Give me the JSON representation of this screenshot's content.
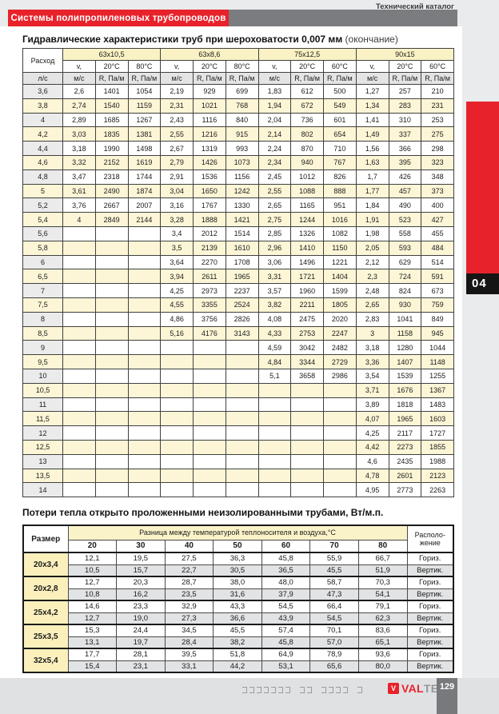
{
  "header": {
    "catalog_label": "Технический каталог",
    "banner_title": "Системы полипропиленовых трубопроводов"
  },
  "side_tab": {
    "section_number": "04"
  },
  "footer": {
    "glyphs": "⊐⊐⊐⊐⊐⊐⊐ ⊐⊐ ⊐⊐⊐⊐ ⊐",
    "brand_icon": "V",
    "brand_val": "VAL",
    "brand_tec": "TEC",
    "page_number": "129"
  },
  "colors": {
    "accent_red": "#e8222b",
    "banner_gray": "#7b7c7f",
    "header_yellow": "#faf2c4",
    "row_yellow": "#fcf6d6",
    "units_gray": "#e4e4e4"
  },
  "hydraulics_table": {
    "title": "Гидравлические характеристики труб при шероховатости 0,007 мм",
    "title_suffix": " (окончание)",
    "flow_header": "Расход",
    "flow_unit": "л/с",
    "velocity_header": "v,",
    "velocity_unit": "м/с",
    "resistance_unit": "R, Па/м",
    "groups": [
      {
        "size": "63x10,5",
        "temp1": "20°С",
        "temp2": "80°С"
      },
      {
        "size": "63x8,6",
        "temp1": "20°С",
        "temp2": "80°С"
      },
      {
        "size": "75x12,5",
        "temp1": "20°С",
        "temp2": "60°С"
      },
      {
        "size": "90x15",
        "temp1": "20°С",
        "temp2": "60°С"
      }
    ],
    "rows": [
      [
        "3,6",
        "2,6",
        "1401",
        "1054",
        "2,19",
        "929",
        "699",
        "1,83",
        "612",
        "500",
        "1,27",
        "257",
        "210"
      ],
      [
        "3,8",
        "2,74",
        "1540",
        "1159",
        "2,31",
        "1021",
        "768",
        "1,94",
        "672",
        "549",
        "1,34",
        "283",
        "231"
      ],
      [
        "4",
        "2,89",
        "1685",
        "1267",
        "2,43",
        "1116",
        "840",
        "2,04",
        "736",
        "601",
        "1,41",
        "310",
        "253"
      ],
      [
        "4,2",
        "3,03",
        "1835",
        "1381",
        "2,55",
        "1216",
        "915",
        "2,14",
        "802",
        "654",
        "1,49",
        "337",
        "275"
      ],
      [
        "4,4",
        "3,18",
        "1990",
        "1498",
        "2,67",
        "1319",
        "993",
        "2,24",
        "870",
        "710",
        "1,56",
        "366",
        "298"
      ],
      [
        "4,6",
        "3,32",
        "2152",
        "1619",
        "2,79",
        "1426",
        "1073",
        "2,34",
        "940",
        "767",
        "1,63",
        "395",
        "323"
      ],
      [
        "4,8",
        "3,47",
        "2318",
        "1744",
        "2,91",
        "1536",
        "1156",
        "2,45",
        "1012",
        "826",
        "1,7",
        "426",
        "348"
      ],
      [
        "5",
        "3,61",
        "2490",
        "1874",
        "3,04",
        "1650",
        "1242",
        "2,55",
        "1088",
        "888",
        "1,77",
        "457",
        "373"
      ],
      [
        "5,2",
        "3,76",
        "2667",
        "2007",
        "3,16",
        "1767",
        "1330",
        "2,65",
        "1165",
        "951",
        "1,84",
        "490",
        "400"
      ],
      [
        "5,4",
        "4",
        "2849",
        "2144",
        "3,28",
        "1888",
        "1421",
        "2,75",
        "1244",
        "1016",
        "1,91",
        "523",
        "427"
      ],
      [
        "5,6",
        "",
        "",
        "",
        "3,4",
        "2012",
        "1514",
        "2,85",
        "1326",
        "1082",
        "1,98",
        "558",
        "455"
      ],
      [
        "5,8",
        "",
        "",
        "",
        "3,5",
        "2139",
        "1610",
        "2,96",
        "1410",
        "1150",
        "2,05",
        "593",
        "484"
      ],
      [
        "6",
        "",
        "",
        "",
        "3,64",
        "2270",
        "1708",
        "3,06",
        "1496",
        "1221",
        "2,12",
        "629",
        "514"
      ],
      [
        "6,5",
        "",
        "",
        "",
        "3,94",
        "2611",
        "1965",
        "3,31",
        "1721",
        "1404",
        "2,3",
        "724",
        "591"
      ],
      [
        "7",
        "",
        "",
        "",
        "4,25",
        "2973",
        "2237",
        "3,57",
        "1960",
        "1599",
        "2,48",
        "824",
        "673"
      ],
      [
        "7,5",
        "",
        "",
        "",
        "4,55",
        "3355",
        "2524",
        "3,82",
        "2211",
        "1805",
        "2,65",
        "930",
        "759"
      ],
      [
        "8",
        "",
        "",
        "",
        "4,86",
        "3756",
        "2826",
        "4,08",
        "2475",
        "2020",
        "2,83",
        "1041",
        "849"
      ],
      [
        "8,5",
        "",
        "",
        "",
        "5,16",
        "4176",
        "3143",
        "4,33",
        "2753",
        "2247",
        "3",
        "1158",
        "945"
      ],
      [
        "9",
        "",
        "",
        "",
        "",
        "",
        "",
        "4,59",
        "3042",
        "2482",
        "3,18",
        "1280",
        "1044"
      ],
      [
        "9,5",
        "",
        "",
        "",
        "",
        "",
        "",
        "4,84",
        "3344",
        "2729",
        "3,36",
        "1407",
        "1148"
      ],
      [
        "10",
        "",
        "",
        "",
        "",
        "",
        "",
        "5,1",
        "3658",
        "2986",
        "3,54",
        "1539",
        "1255"
      ],
      [
        "10,5",
        "",
        "",
        "",
        "",
        "",
        "",
        "",
        "",
        "",
        "3,71",
        "1676",
        "1367"
      ],
      [
        "11",
        "",
        "",
        "",
        "",
        "",
        "",
        "",
        "",
        "",
        "3,89",
        "1818",
        "1483"
      ],
      [
        "11,5",
        "",
        "",
        "",
        "",
        "",
        "",
        "",
        "",
        "",
        "4,07",
        "1965",
        "1603"
      ],
      [
        "12",
        "",
        "",
        "",
        "",
        "",
        "",
        "",
        "",
        "",
        "4,25",
        "2117",
        "1727"
      ],
      [
        "12,5",
        "",
        "",
        "",
        "",
        "",
        "",
        "",
        "",
        "",
        "4,42",
        "2273",
        "1855"
      ],
      [
        "13",
        "",
        "",
        "",
        "",
        "",
        "",
        "",
        "",
        "",
        "4,6",
        "2435",
        "1988"
      ],
      [
        "13,5",
        "",
        "",
        "",
        "",
        "",
        "",
        "",
        "",
        "",
        "4,78",
        "2601",
        "2123"
      ],
      [
        "14",
        "",
        "",
        "",
        "",
        "",
        "",
        "",
        "",
        "",
        "4,95",
        "2773",
        "2263"
      ]
    ]
  },
  "heatloss_table": {
    "title": "Потери тепла открыто проложенными неизолированными трубами, Вт/м.п.",
    "size_header": "Размер",
    "delta_header": "Разница между температурой теплоносителя и воздуха,°С",
    "location_header_line1": "Располо-",
    "location_header_line2": "жение",
    "temps": [
      "20",
      "30",
      "40",
      "50",
      "60",
      "70",
      "80"
    ],
    "horizontal_label": "Гориз.",
    "vertical_label": "Вертик.",
    "sizes": [
      {
        "size": "20x3,4",
        "horizontal": [
          "12,1",
          "19,5",
          "27,5",
          "36,3",
          "45,8",
          "55,9",
          "66,7"
        ],
        "vertical": [
          "10,5",
          "15,7",
          "22,7",
          "30,5",
          "36,5",
          "45,5",
          "51,9"
        ]
      },
      {
        "size": "20x2,8",
        "horizontal": [
          "12,7",
          "20,3",
          "28,7",
          "38,0",
          "48,0",
          "58,7",
          "70,3"
        ],
        "vertical": [
          "10,8",
          "16,2",
          "23,5",
          "31,6",
          "37,9",
          "47,3",
          "54,1"
        ]
      },
      {
        "size": "25x4,2",
        "horizontal": [
          "14,6",
          "23,3",
          "32,9",
          "43,3",
          "54,5",
          "66,4",
          "79,1"
        ],
        "vertical": [
          "12,7",
          "19,0",
          "27,3",
          "36,6",
          "43,9",
          "54,5",
          "62,3"
        ]
      },
      {
        "size": "25x3,5",
        "horizontal": [
          "15,3",
          "24,4",
          "34,5",
          "45,5",
          "57,4",
          "70,1",
          "83,6"
        ],
        "vertical": [
          "13,1",
          "19,7",
          "28,4",
          "38,2",
          "45,8",
          "57,0",
          "65,1"
        ]
      },
      {
        "size": "32x5,4",
        "horizontal": [
          "17,7",
          "28,1",
          "39,5",
          "51,8",
          "64,9",
          "78,9",
          "93,6"
        ],
        "vertical": [
          "15,4",
          "23,1",
          "33,1",
          "44,2",
          "53,1",
          "65,6",
          "80,0"
        ]
      }
    ]
  }
}
